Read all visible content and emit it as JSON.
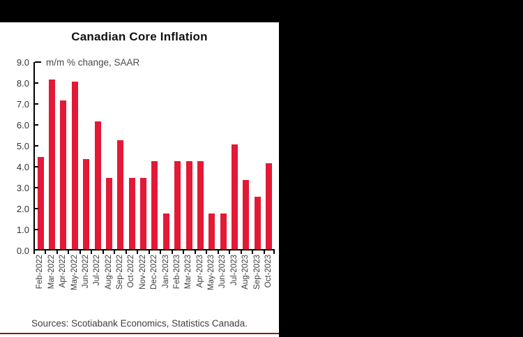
{
  "window": {
    "background": "#000000",
    "panel_background": "#ffffff"
  },
  "footer": {
    "sources": "Sources: Scotiabank Economics, Statistics Canada.",
    "rule_color": "#8b1a1a"
  },
  "chart_data": {
    "type": "bar",
    "title": "Canadian Core Inflation",
    "subtitle": "m/m % change, SAAR",
    "categories": [
      "Feb-2022",
      "Mar-2022",
      "Apr-2022",
      "May-2022",
      "Jun-2022",
      "Jul-2022",
      "Aug-2022",
      "Sep-2022",
      "Oct-2022",
      "Nov-2022",
      "Dec-2022",
      "Jan-2023",
      "Feb-2023",
      "Mar-2023",
      "Apr-2023",
      "May-2023",
      "Jun-2023",
      "Jul-2023",
      "Aug-2023",
      "Sep-2023",
      "Oct-2023"
    ],
    "values": [
      4.4,
      8.1,
      7.1,
      8.0,
      4.3,
      6.1,
      3.4,
      5.2,
      3.4,
      3.4,
      4.2,
      1.7,
      4.2,
      4.2,
      4.2,
      1.7,
      1.7,
      5.0,
      3.3,
      2.5,
      4.1
    ],
    "xlabel": "",
    "ylabel": "",
    "ylim": [
      0,
      9
    ],
    "ytick_step": 1.0,
    "ytick_labels": [
      "9.0",
      "8.0",
      "7.0",
      "6.0",
      "5.0",
      "4.0",
      "3.0",
      "2.0",
      "1.0",
      "0.0"
    ],
    "x_tick_rotation": 90,
    "grid": false,
    "legend": "none",
    "bar_color": "#e31936",
    "axis_color": "#000000",
    "text_color": "#3d3d3d"
  }
}
